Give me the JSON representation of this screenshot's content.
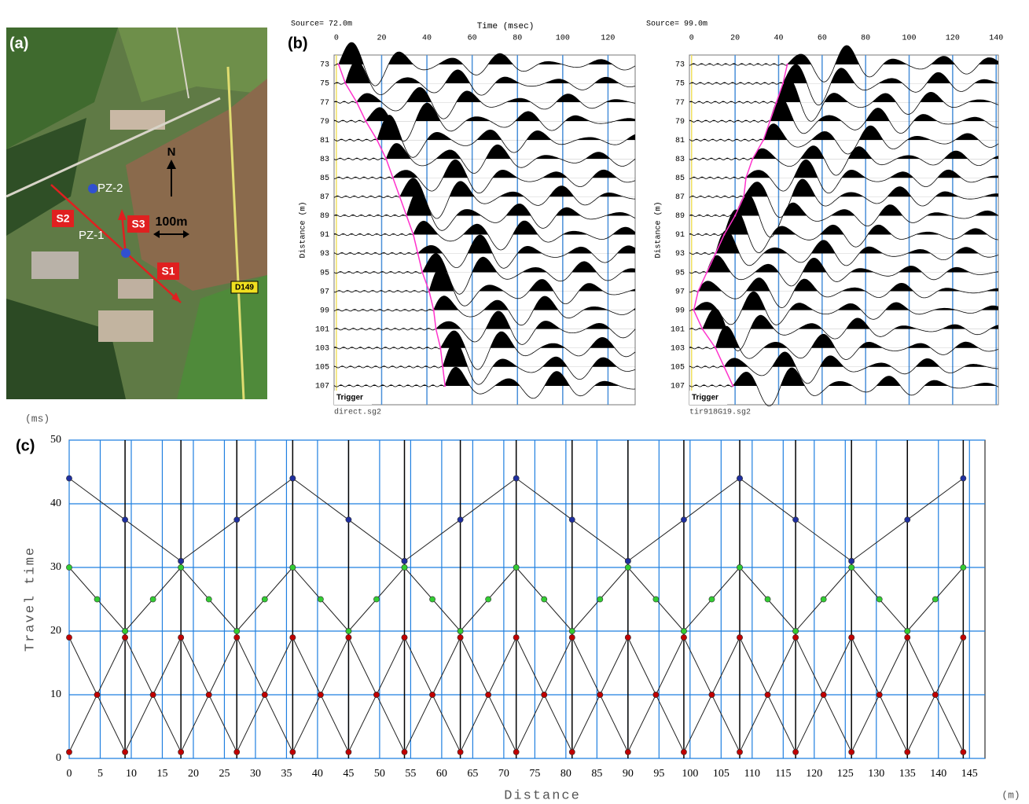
{
  "panel_labels": [
    "(a)",
    "(b)",
    "(c)"
  ],
  "map_labels": [
    "PZ-2",
    "PZ-1",
    "S1",
    "S2",
    "S3",
    "N",
    "100m",
    "D149"
  ],
  "chart_data": [
    {
      "type": "seismogram",
      "title": "Source= 72.0m",
      "x_label": "Time (msec)",
      "y_label": "Distance (m)",
      "trigger": "Trigger",
      "filename": "direct.sg2",
      "xlim": [
        -1,
        132
      ],
      "xticks": [
        0,
        20,
        40,
        60,
        80,
        100,
        120
      ],
      "ylim": [
        72,
        109
      ],
      "yticks": [
        73,
        75,
        77,
        79,
        81,
        83,
        85,
        87,
        89,
        91,
        93,
        95,
        97,
        99,
        101,
        103,
        105,
        107
      ],
      "grid": true,
      "grid_color": "#4a90d9",
      "series": [
        {
          "color": "#ff33cc",
          "x": [
            73,
            75,
            77,
            79,
            81,
            83,
            85,
            87,
            89,
            91,
            93,
            95,
            97,
            99,
            101,
            103,
            105,
            107
          ],
          "values": [
            1,
            4,
            9,
            13,
            18,
            22,
            25,
            28,
            31,
            34,
            36,
            38,
            41,
            43,
            44,
            46,
            47,
            48
          ]
        }
      ]
    },
    {
      "type": "seismogram",
      "title": "Source= 99.0m",
      "y_label": "Distance (m)",
      "trigger": "Trigger",
      "filename": "tir918G19.sg2",
      "xlim": [
        -1,
        141
      ],
      "xticks": [
        0,
        20,
        40,
        60,
        80,
        100,
        120,
        140
      ],
      "ylim": [
        72,
        109
      ],
      "yticks": [
        73,
        75,
        77,
        79,
        81,
        83,
        85,
        87,
        89,
        91,
        93,
        95,
        97,
        99,
        101,
        103,
        105,
        107
      ],
      "grid": true,
      "grid_color": "#4a90d9",
      "series": [
        {
          "color": "#ff33cc",
          "x": [
            73,
            75,
            77,
            79,
            81,
            83,
            85,
            87,
            89,
            91,
            93,
            95,
            97,
            99,
            101,
            103,
            105,
            107
          ],
          "values": [
            44,
            42,
            39,
            36,
            33,
            28,
            25,
            24,
            20,
            15,
            11,
            7,
            3,
            1,
            5,
            11,
            15,
            19
          ]
        }
      ]
    },
    {
      "type": "line",
      "y_label": "Travel time",
      "y_unit": "(ms)",
      "x_label": "Distance",
      "x_unit": "(m)",
      "xlim": [
        0,
        147.5
      ],
      "xticks": [
        0,
        5,
        10,
        15,
        20,
        25,
        30,
        35,
        40,
        45,
        50,
        55,
        60,
        65,
        70,
        75,
        80,
        85,
        90,
        95,
        100,
        105,
        110,
        115,
        120,
        125,
        130,
        135,
        140,
        145
      ],
      "ylim": [
        0,
        50
      ],
      "yticks": [
        0,
        10,
        20,
        30,
        40,
        50
      ],
      "grid": true,
      "grid_color": "#1f7fe0",
      "shots": [
        9,
        18,
        27,
        36,
        45,
        54,
        63,
        72,
        81,
        90,
        99,
        108,
        117,
        126,
        135,
        144
      ],
      "series": [
        {
          "color": "#c00000",
          "x": [
            0,
            4.5,
            9,
            null,
            0,
            4.5,
            9,
            13.5,
            18,
            null,
            9,
            13.5,
            18,
            22.5,
            27,
            null,
            18,
            22.5,
            27,
            31.5,
            36,
            null,
            27,
            31.5,
            36,
            40.5,
            45,
            null,
            36,
            40.5,
            45,
            49.5,
            54,
            null,
            45,
            49.5,
            54,
            58.5,
            63,
            null,
            54,
            58.5,
            63,
            67.5,
            72,
            null,
            63,
            67.5,
            72,
            76.5,
            81,
            null,
            72,
            76.5,
            81,
            85.5,
            90,
            null,
            81,
            85.5,
            90,
            94.5,
            99,
            null,
            90,
            94.5,
            99,
            103.5,
            108,
            null,
            99,
            103.5,
            108,
            112.5,
            117,
            null,
            108,
            112.5,
            117,
            121.5,
            126,
            null,
            117,
            121.5,
            126,
            130.5,
            135,
            null,
            126,
            130.5,
            135,
            139.5,
            144,
            null,
            135,
            139.5,
            144
          ],
          "values": [
            1,
            10,
            19,
            null,
            19,
            10,
            1,
            10,
            19,
            null,
            19,
            10,
            1,
            10,
            19,
            null,
            19,
            10,
            1,
            10,
            19,
            null,
            19,
            10,
            1,
            10,
            19,
            null,
            19,
            10,
            1,
            10,
            19,
            null,
            19,
            10,
            1,
            10,
            19,
            null,
            19,
            10,
            1,
            10,
            19,
            null,
            19,
            10,
            1,
            10,
            19,
            null,
            19,
            10,
            1,
            10,
            19,
            null,
            19,
            10,
            1,
            10,
            19,
            null,
            19,
            10,
            1,
            10,
            19,
            null,
            19,
            10,
            1,
            10,
            19,
            null,
            19,
            10,
            1,
            10,
            19,
            null,
            19,
            10,
            1,
            10,
            19,
            null,
            19,
            10,
            1,
            10,
            19,
            null,
            19,
            10,
            1
          ]
        },
        {
          "color": "#33cc33",
          "x": [
            9,
            13.5,
            18,
            null,
            9,
            4.5,
            0,
            null,
            27,
            31.5,
            36,
            null,
            27,
            22.5,
            18,
            null,
            45,
            49.5,
            54,
            null,
            45,
            40.5,
            36,
            null,
            63,
            67.5,
            72,
            null,
            63,
            58.5,
            54,
            null,
            81,
            85.5,
            90,
            null,
            81,
            76.5,
            72,
            null,
            99,
            103.5,
            108,
            null,
            99,
            94.5,
            90,
            null,
            117,
            121.5,
            126,
            null,
            117,
            112.5,
            108,
            null,
            135,
            139.5,
            144,
            null,
            135,
            130.5,
            126
          ],
          "values": [
            20,
            25,
            30,
            null,
            20,
            25,
            30,
            null,
            20,
            25,
            30,
            null,
            20,
            25,
            30,
            null,
            20,
            25,
            30,
            null,
            20,
            25,
            30,
            null,
            20,
            25,
            30,
            null,
            20,
            25,
            30,
            null,
            20,
            25,
            30,
            null,
            20,
            25,
            30,
            null,
            20,
            25,
            30,
            null,
            20,
            25,
            30,
            null,
            20,
            25,
            30,
            null,
            20,
            25,
            30,
            null,
            20,
            25,
            30,
            null,
            20,
            25,
            30
          ]
        },
        {
          "color": "#1f2f9f",
          "x": [
            18,
            27,
            36,
            null,
            18,
            9,
            0,
            null,
            54,
            63,
            72,
            null,
            54,
            45,
            36,
            null,
            90,
            99,
            108,
            null,
            90,
            81,
            72,
            null,
            126,
            135,
            144,
            null,
            126,
            117,
            108
          ],
          "values": [
            31,
            37.5,
            44,
            null,
            31,
            37.5,
            44,
            null,
            31,
            37.5,
            44,
            null,
            31,
            37.5,
            44,
            null,
            31,
            37.5,
            44,
            null,
            31,
            37.5,
            44,
            null,
            31,
            37.5,
            44,
            null,
            31,
            37.5,
            44
          ]
        }
      ]
    }
  ]
}
